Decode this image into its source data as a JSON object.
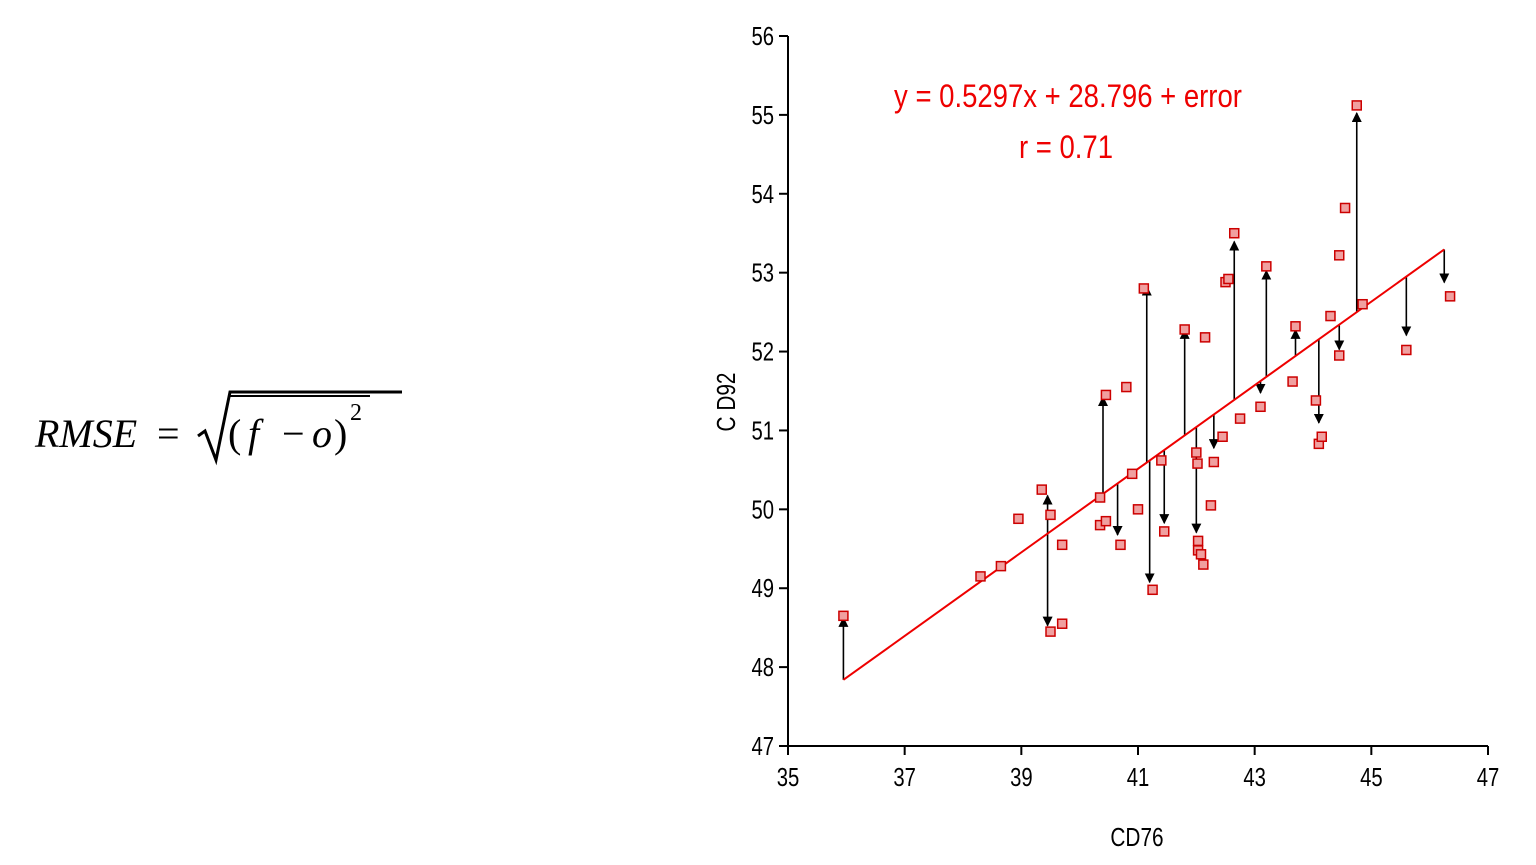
{
  "formula": {
    "lhs": "RMSE",
    "equals": "=",
    "open_paren": "(",
    "f": "f",
    "minus": "−",
    "o": "o",
    "close_paren": ")",
    "exponent": "2"
  },
  "colors": {
    "point_fill": "#f0a0a0",
    "point_stroke": "#cc0000",
    "fit_line": "#ee0000",
    "arrows": "#000000",
    "annotation": "#ee0000"
  },
  "chart_data": {
    "type": "scatter",
    "title": "",
    "xlabel": "CD76",
    "ylabel": "C D92",
    "xlim": [
      35,
      47
    ],
    "ylim": [
      47,
      56
    ],
    "xticks": [
      35,
      37,
      39,
      41,
      43,
      45,
      47
    ],
    "yticks": [
      47,
      48,
      49,
      50,
      51,
      52,
      53,
      54,
      55,
      56
    ],
    "grid": false,
    "legend": "none",
    "annotations": [
      "y = 0.5297x + 28.796 + error",
      "r = 0.71"
    ],
    "regression": {
      "slope": 0.5297,
      "intercept": 28.796,
      "x_range": [
        35.95,
        46.25
      ]
    },
    "points": [
      [
        35.95,
        48.65
      ],
      [
        38.3,
        49.15
      ],
      [
        38.65,
        49.28
      ],
      [
        38.95,
        49.88
      ],
      [
        39.35,
        50.25
      ],
      [
        39.5,
        48.45
      ],
      [
        39.5,
        49.93
      ],
      [
        39.7,
        49.55
      ],
      [
        39.7,
        48.55
      ],
      [
        40.35,
        50.15
      ],
      [
        40.35,
        49.8
      ],
      [
        40.45,
        51.45
      ],
      [
        40.45,
        49.85
      ],
      [
        40.7,
        49.55
      ],
      [
        40.8,
        51.55
      ],
      [
        40.9,
        50.45
      ],
      [
        41.0,
        50.0
      ],
      [
        41.1,
        52.8
      ],
      [
        41.25,
        48.98
      ],
      [
        41.4,
        50.62
      ],
      [
        41.45,
        49.72
      ],
      [
        41.8,
        52.28
      ],
      [
        42.0,
        50.72
      ],
      [
        42.02,
        50.58
      ],
      [
        42.03,
        49.6
      ],
      [
        42.03,
        49.48
      ],
      [
        42.08,
        49.43
      ],
      [
        42.12,
        49.3
      ],
      [
        42.15,
        52.18
      ],
      [
        42.25,
        50.05
      ],
      [
        42.3,
        50.6
      ],
      [
        42.45,
        50.92
      ],
      [
        42.5,
        52.88
      ],
      [
        42.55,
        52.92
      ],
      [
        42.65,
        53.5
      ],
      [
        42.75,
        51.15
      ],
      [
        43.1,
        51.3
      ],
      [
        43.2,
        53.08
      ],
      [
        43.65,
        51.62
      ],
      [
        43.7,
        52.32
      ],
      [
        44.05,
        51.38
      ],
      [
        44.1,
        50.83
      ],
      [
        44.15,
        50.92
      ],
      [
        44.3,
        52.45
      ],
      [
        44.45,
        51.95
      ],
      [
        44.45,
        53.22
      ],
      [
        44.55,
        53.82
      ],
      [
        44.75,
        55.12
      ],
      [
        44.85,
        52.6
      ],
      [
        45.6,
        52.02
      ],
      [
        46.35,
        52.7
      ]
    ],
    "residual_arrows": [
      [
        35.95,
        48.65
      ],
      [
        39.45,
        50.2
      ],
      [
        39.45,
        48.5
      ],
      [
        40.4,
        51.45
      ],
      [
        40.65,
        49.65
      ],
      [
        41.15,
        52.85
      ],
      [
        41.2,
        49.05
      ],
      [
        41.45,
        49.8
      ],
      [
        41.8,
        52.3
      ],
      [
        42.0,
        49.68
      ],
      [
        42.3,
        50.75
      ],
      [
        42.65,
        53.42
      ],
      [
        43.1,
        51.45
      ],
      [
        43.2,
        53.05
      ],
      [
        43.7,
        52.3
      ],
      [
        44.1,
        51.07
      ],
      [
        44.45,
        52.0
      ],
      [
        44.75,
        55.05
      ],
      [
        45.6,
        52.18
      ],
      [
        46.25,
        52.85
      ]
    ]
  }
}
